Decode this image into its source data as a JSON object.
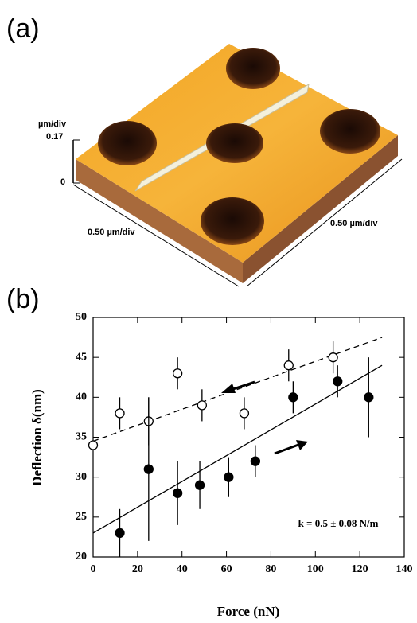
{
  "panel_a": {
    "label": "(a)",
    "z_unit": "µm/div",
    "z_max": "0.17",
    "z_min": "0",
    "x_scale": "0.50 µm/div",
    "y_scale": "0.50 µm/div"
  },
  "chart_data": {
    "type": "scatter",
    "panel_label": "(b)",
    "x_label": "Force (nN)",
    "y_label": "Deflection δ(nm)",
    "annotation": "k = 0.5 ± 0.08 N/m",
    "xlim": [
      0,
      140
    ],
    "ylim": [
      20,
      50
    ],
    "xticks": [
      0,
      20,
      40,
      60,
      80,
      100,
      120,
      140
    ],
    "yticks": [
      20,
      25,
      30,
      35,
      40,
      45,
      50
    ],
    "series": [
      {
        "marker": "open",
        "color": "#000000",
        "x": [
          0,
          12,
          25,
          38,
          49,
          68,
          88,
          108
        ],
        "values": [
          34,
          38,
          37,
          43,
          39,
          38,
          44,
          45
        ],
        "errors": [
          0,
          2,
          3,
          2,
          2,
          2,
          2,
          2
        ]
      },
      {
        "marker": "filled",
        "color": "#000000",
        "x": [
          12,
          25,
          38,
          48,
          61,
          73,
          90,
          110,
          124
        ],
        "values": [
          23,
          31,
          28,
          29,
          30,
          32,
          40,
          42,
          40
        ],
        "errors": [
          3,
          9,
          4,
          3,
          2.5,
          2,
          2,
          2,
          5
        ]
      }
    ],
    "fit_lines": [
      {
        "dashed": true,
        "x": [
          0,
          130
        ],
        "values": [
          34.5,
          47.5
        ]
      },
      {
        "dashed": false,
        "x": [
          0,
          130
        ],
        "values": [
          23,
          44
        ]
      }
    ]
  }
}
